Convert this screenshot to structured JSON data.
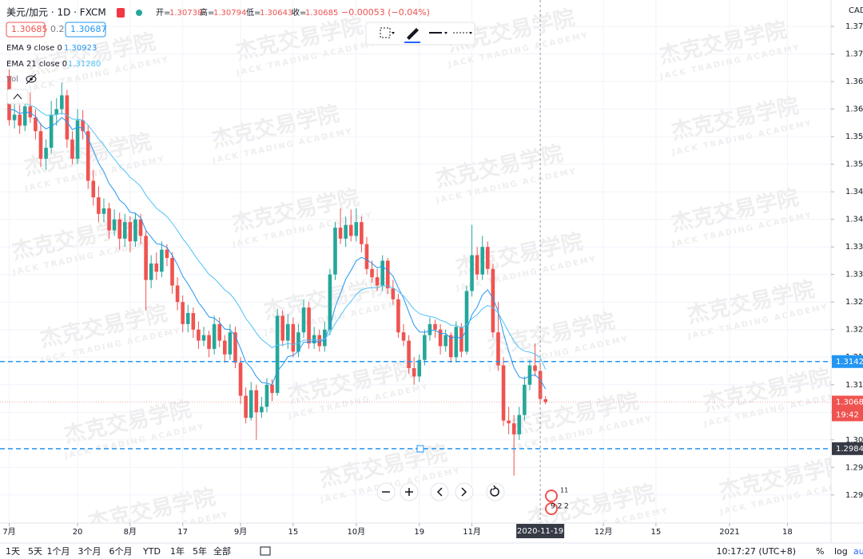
{
  "header": {
    "symbol": "美元/加元 · 1D · FXCM",
    "ohlc": [
      {
        "label": "开=",
        "value": "1.30738"
      },
      {
        "label": "高=",
        "value": "1.30794"
      },
      {
        "label": "低=",
        "value": "1.30643"
      },
      {
        "label": "收=",
        "value": "1.30685"
      }
    ],
    "change": "−0.00053 (−0.04%)"
  },
  "quote": {
    "sell": "1.30685",
    "spread": "0.2",
    "buy": "1.30687"
  },
  "volume_label": "Vol",
  "currency": "CAD",
  "timer": "19:42",
  "events": [
    "11",
    "9 2 2"
  ],
  "watermark": {
    "title": "杰克交易学院",
    "subtitle": "JACK TRADING ACADEMY"
  },
  "toolbar": {
    "ranges": [
      "1天",
      "5天",
      "1个月",
      "3个月",
      "6个月",
      "YTD",
      "1年",
      "5年",
      "全部"
    ],
    "time": "10:17:27 (UTC+8)",
    "percent": "%",
    "log": "log",
    "auto": "au"
  },
  "chart_data": {
    "type": "candlestick",
    "xlim": [
      -1.75,
      156.3
    ],
    "xticks": [
      {
        "value": 0,
        "label": "7月"
      },
      {
        "value": 13,
        "label": "20"
      },
      {
        "value": 23,
        "label": "8月"
      },
      {
        "value": 33,
        "label": "17"
      },
      {
        "value": 44,
        "label": "9月"
      },
      {
        "value": 54,
        "label": "15"
      },
      {
        "value": 66,
        "label": "10月"
      },
      {
        "value": 78,
        "label": "19"
      },
      {
        "value": 88,
        "label": "11月"
      },
      {
        "value": 113,
        "label": "12月"
      },
      {
        "value": 123,
        "label": "15"
      },
      {
        "value": 137,
        "label": "2021"
      },
      {
        "value": 148,
        "label": "18"
      }
    ],
    "ylim": [
      1.2849,
      1.3798
    ],
    "yticks": [
      {
        "value": 1.29,
        "label": "1.290"
      },
      1.295,
      {
        "value": 1.3,
        "label": "1.300"
      },
      1.305,
      {
        "value": 1.31,
        "label": "1.310"
      },
      1.315,
      {
        "value": 1.32,
        "label": "1.320"
      },
      1.325,
      {
        "value": 1.33,
        "label": "1.330"
      },
      1.335,
      {
        "value": 1.34,
        "label": "1.340"
      },
      1.345,
      {
        "value": 1.35,
        "label": "1.350"
      },
      1.355,
      {
        "value": 1.36,
        "label": "1.360"
      },
      1.365,
      {
        "value": 1.37,
        "label": "1.370"
      },
      1.375
    ],
    "grid": true,
    "up_color": "#26a69a",
    "down_color": "#ef5350",
    "candles": [
      [
        1.366,
        1.3672,
        1.357,
        1.358
      ],
      [
        1.358,
        1.3612,
        1.3565,
        1.359
      ],
      [
        1.359,
        1.3608,
        1.3555,
        1.357
      ],
      [
        1.357,
        1.3625,
        1.356,
        1.3605
      ],
      [
        1.3605,
        1.363,
        1.3575,
        1.3585
      ],
      [
        1.3585,
        1.36,
        1.3545,
        1.356
      ],
      [
        1.356,
        1.3575,
        1.3495,
        1.351
      ],
      [
        1.351,
        1.3545,
        1.349,
        1.353
      ],
      [
        1.353,
        1.3615,
        1.352,
        1.359
      ],
      [
        1.359,
        1.362,
        1.357,
        1.36
      ],
      [
        1.36,
        1.3648,
        1.359,
        1.3625
      ],
      [
        1.3625,
        1.3635,
        1.353,
        1.3545
      ],
      [
        1.3545,
        1.356,
        1.35,
        1.351
      ],
      [
        1.351,
        1.36,
        1.35,
        1.358
      ],
      [
        1.358,
        1.3598,
        1.3545,
        1.356
      ],
      [
        1.356,
        1.357,
        1.3455,
        1.347
      ],
      [
        1.347,
        1.349,
        1.3425,
        1.344
      ],
      [
        1.344,
        1.346,
        1.3395,
        1.341
      ],
      [
        1.341,
        1.3438,
        1.3395,
        1.342
      ],
      [
        1.342,
        1.343,
        1.3365,
        1.338
      ],
      [
        1.338,
        1.3418,
        1.337,
        1.34
      ],
      [
        1.34,
        1.3412,
        1.3345,
        1.3365
      ],
      [
        1.3365,
        1.341,
        1.335,
        1.3395
      ],
      [
        1.3395,
        1.3405,
        1.334,
        1.336
      ],
      [
        1.336,
        1.3412,
        1.335,
        1.34
      ],
      [
        1.34,
        1.341,
        1.3355,
        1.337
      ],
      [
        1.337,
        1.338,
        1.3235,
        1.329
      ],
      [
        1.329,
        1.3335,
        1.3275,
        1.332
      ],
      [
        1.332,
        1.334,
        1.329,
        1.3305
      ],
      [
        1.3305,
        1.336,
        1.3295,
        1.3345
      ],
      [
        1.3345,
        1.3355,
        1.3315,
        1.333
      ],
      [
        1.333,
        1.334,
        1.3265,
        1.328
      ],
      [
        1.328,
        1.3295,
        1.3235,
        1.325
      ],
      [
        1.325,
        1.3262,
        1.3195,
        1.321
      ],
      [
        1.321,
        1.3245,
        1.3195,
        1.323
      ],
      [
        1.323,
        1.324,
        1.3185,
        1.32
      ],
      [
        1.32,
        1.3215,
        1.3165,
        1.318
      ],
      [
        1.318,
        1.3205,
        1.317,
        1.319
      ],
      [
        1.319,
        1.3198,
        1.315,
        1.3165
      ],
      [
        1.3165,
        1.3225,
        1.3155,
        1.321
      ],
      [
        1.321,
        1.3222,
        1.3168,
        1.318
      ],
      [
        1.318,
        1.319,
        1.314,
        1.3155
      ],
      [
        1.3155,
        1.321,
        1.3145,
        1.3195
      ],
      [
        1.3195,
        1.3205,
        1.313,
        1.314
      ],
      [
        1.314,
        1.315,
        1.3065,
        1.308
      ],
      [
        1.308,
        1.3095,
        1.303,
        1.304
      ],
      [
        1.304,
        1.3105,
        1.3035,
        1.309
      ],
      [
        1.309,
        1.31,
        1.3,
        1.305
      ],
      [
        1.305,
        1.3078,
        1.304,
        1.306
      ],
      [
        1.306,
        1.3112,
        1.305,
        1.31
      ],
      [
        1.31,
        1.311,
        1.307,
        1.3085
      ],
      [
        1.3085,
        1.3238,
        1.308,
        1.3225
      ],
      [
        1.3225,
        1.3235,
        1.317,
        1.318
      ],
      [
        1.318,
        1.3228,
        1.3165,
        1.321
      ],
      [
        1.321,
        1.3222,
        1.315,
        1.316
      ],
      [
        1.316,
        1.321,
        1.315,
        1.3195
      ],
      [
        1.3195,
        1.3255,
        1.3185,
        1.324
      ],
      [
        1.324,
        1.325,
        1.3165,
        1.3175
      ],
      [
        1.3175,
        1.3205,
        1.3165,
        1.319
      ],
      [
        1.319,
        1.32,
        1.316,
        1.317
      ],
      [
        1.317,
        1.3215,
        1.316,
        1.32
      ],
      [
        1.32,
        1.331,
        1.319,
        1.33
      ],
      [
        1.33,
        1.3395,
        1.329,
        1.3385
      ],
      [
        1.3385,
        1.342,
        1.3355,
        1.3365
      ],
      [
        1.3365,
        1.3405,
        1.335,
        1.339
      ],
      [
        1.339,
        1.3418,
        1.336,
        1.337
      ],
      [
        1.337,
        1.342,
        1.336,
        1.3395
      ],
      [
        1.3395,
        1.3405,
        1.334,
        1.3355
      ],
      [
        1.3355,
        1.3368,
        1.33,
        1.331
      ],
      [
        1.331,
        1.3325,
        1.3285,
        1.3295
      ],
      [
        1.3295,
        1.331,
        1.327,
        1.328
      ],
      [
        1.328,
        1.3335,
        1.327,
        1.3325
      ],
      [
        1.3325,
        1.333,
        1.3265,
        1.3275
      ],
      [
        1.3275,
        1.329,
        1.3245,
        1.3255
      ],
      [
        1.3255,
        1.3265,
        1.3185,
        1.3195
      ],
      [
        1.3195,
        1.321,
        1.317,
        1.318
      ],
      [
        1.318,
        1.319,
        1.312,
        1.313
      ],
      [
        1.313,
        1.315,
        1.31,
        1.3115
      ],
      [
        1.3115,
        1.3155,
        1.3105,
        1.3145
      ],
      [
        1.3145,
        1.32,
        1.3135,
        1.319
      ],
      [
        1.319,
        1.3222,
        1.318,
        1.321
      ],
      [
        1.321,
        1.3218,
        1.3185,
        1.32
      ],
      [
        1.32,
        1.321,
        1.3155,
        1.317
      ],
      [
        1.317,
        1.32,
        1.316,
        1.319
      ],
      [
        1.319,
        1.3195,
        1.314,
        1.315
      ],
      [
        1.315,
        1.3215,
        1.314,
        1.3205
      ],
      [
        1.3205,
        1.3212,
        1.315,
        1.316
      ],
      [
        1.316,
        1.328,
        1.3155,
        1.327
      ],
      [
        1.327,
        1.339,
        1.326,
        1.3335
      ],
      [
        1.3335,
        1.335,
        1.329,
        1.33
      ],
      [
        1.33,
        1.337,
        1.329,
        1.335
      ],
      [
        1.335,
        1.336,
        1.33,
        1.331
      ],
      [
        1.331,
        1.332,
        1.3185,
        1.3195
      ],
      [
        1.3195,
        1.325,
        1.3125,
        1.3135
      ],
      [
        1.3135,
        1.315,
        1.3025,
        1.3035
      ],
      [
        1.3035,
        1.306,
        1.301,
        1.303
      ],
      [
        1.303,
        1.3045,
        1.2935,
        1.301
      ],
      [
        1.301,
        1.306,
        1.3,
        1.3045
      ],
      [
        1.3045,
        1.3115,
        1.3035,
        1.31
      ],
      [
        1.31,
        1.3145,
        1.309,
        1.3135
      ],
      [
        1.3135,
        1.3175,
        1.3115,
        1.3125
      ],
      [
        1.3125,
        1.314,
        1.3065,
        1.3074
      ],
      [
        1.30738,
        1.30794,
        1.30643,
        1.30685
      ]
    ],
    "series": [
      {
        "name": "EMA 9 close 0",
        "legend_value": "1.30923",
        "color": "#2196f3",
        "values": [
          1.36,
          1.3598,
          1.3592,
          1.3595,
          1.3593,
          1.3587,
          1.3572,
          1.3564,
          1.3569,
          1.3575,
          1.3585,
          1.3577,
          1.3563,
          1.3567,
          1.3566,
          1.3547,
          1.3525,
          1.3502,
          1.3486,
          1.3465,
          1.3452,
          1.3435,
          1.3427,
          1.3413,
          1.3411,
          1.3403,
          1.338,
          1.3368,
          1.3356,
          1.3354,
          1.3349,
          1.3335,
          1.3318,
          1.3297,
          1.3283,
          1.3267,
          1.3249,
          1.3237,
          1.3223,
          1.3221,
          1.3213,
          1.3201,
          1.32,
          1.3188,
          1.3166,
          1.3141,
          1.3131,
          1.3115,
          1.3104,
          1.3103,
          1.31,
          1.3125,
          1.3136,
          1.3151,
          1.3153,
          1.3161,
          1.3177,
          1.3177,
          1.3179,
          1.3177,
          1.3182,
          1.3205,
          1.3241,
          1.3266,
          1.3291,
          1.3307,
          1.3325,
          1.3331,
          1.3327,
          1.332,
          1.3312,
          1.3315,
          1.3307,
          1.3297,
          1.3276,
          1.3257,
          1.3232,
          1.3208,
          1.3196,
          1.3195,
          1.3198,
          1.3199,
          1.3193,
          1.3193,
          1.3184,
          1.3188,
          1.3183,
          1.32,
          1.3227,
          1.3241,
          1.3263,
          1.3272,
          1.3257,
          1.3233,
          1.3193,
          1.3161,
          1.3131,
          1.3114,
          1.3111,
          1.3116,
          1.3118,
          1.3109,
          1.30923
        ]
      },
      {
        "name": "EMA 21 close 0",
        "legend_value": "1.31280",
        "color": "#4fc3f7",
        "values": [
          1.362,
          1.3617,
          1.3612,
          1.361,
          1.3607,
          1.3603,
          1.3595,
          1.3589,
          1.3589,
          1.359,
          1.3593,
          1.3589,
          1.3582,
          1.3582,
          1.358,
          1.3571,
          1.3559,
          1.3546,
          1.3535,
          1.3521,
          1.351,
          1.3497,
          1.3488,
          1.3476,
          1.3469,
          1.346,
          1.3444,
          1.3432,
          1.342,
          1.3413,
          1.3405,
          1.3393,
          1.338,
          1.3365,
          1.3353,
          1.3339,
          1.3325,
          1.3313,
          1.33,
          1.3293,
          1.3283,
          1.3272,
          1.3265,
          1.3253,
          1.3238,
          1.322,
          1.3208,
          1.3194,
          1.3182,
          1.3175,
          1.3167,
          1.3172,
          1.3172,
          1.3175,
          1.3173,
          1.3175,
          1.3181,
          1.3181,
          1.3182,
          1.3181,
          1.3183,
          1.3194,
          1.3211,
          1.3225,
          1.324,
          1.3251,
          1.3264,
          1.3272,
          1.3275,
          1.3276,
          1.3276,
          1.328,
          1.3279,
          1.3276,
          1.3269,
          1.3261,
          1.3249,
          1.3237,
          1.3229,
          1.3226,
          1.3224,
          1.3222,
          1.3217,
          1.3214,
          1.3208,
          1.3208,
          1.3203,
          1.3209,
          1.322,
          1.3227,
          1.3238,
          1.3244,
          1.324,
          1.323,
          1.3213,
          1.3196,
          1.3179,
          1.3167,
          1.3161,
          1.3159,
          1.3156,
          1.3149,
          1.3128
        ]
      }
    ],
    "price_lines": [
      {
        "value": 1.3142,
        "color": "#2196f3"
      },
      {
        "value": 1.2984,
        "color": "#2196f3",
        "label_color": "#363a45"
      }
    ],
    "crosshair": {
      "value": 101,
      "label": "2020-11-19"
    }
  }
}
